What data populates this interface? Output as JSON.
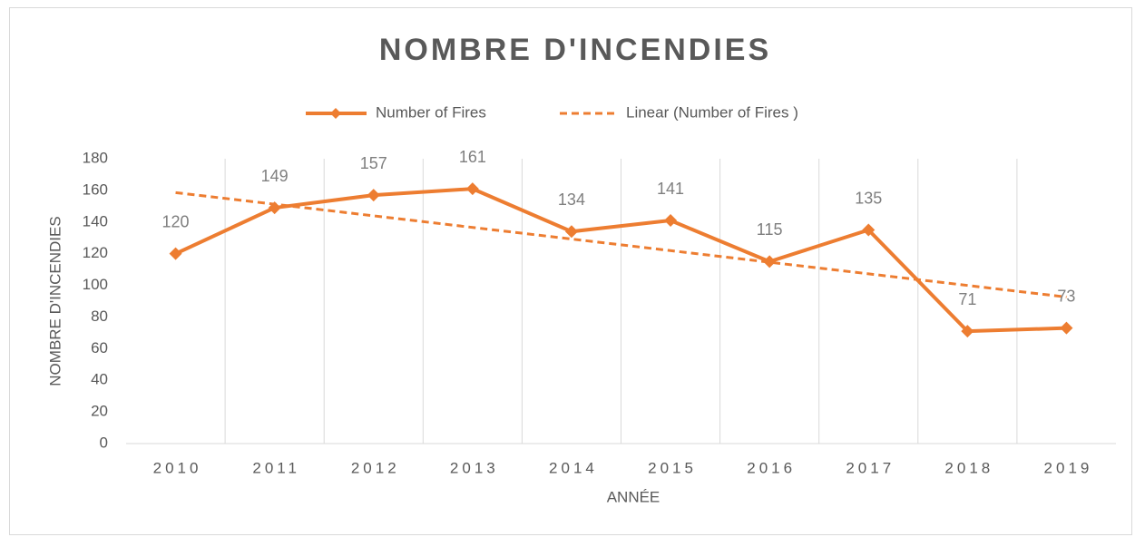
{
  "chart_data": {
    "type": "line",
    "title": "NOMBRE D'INCENDIES",
    "categories": [
      "2010",
      "2011",
      "2012",
      "2013",
      "2014",
      "2015",
      "2016",
      "2017",
      "2018",
      "2019"
    ],
    "series": [
      {
        "name": "Number of Fires",
        "color": "#ed7d31",
        "values": [
          120,
          149,
          157,
          161,
          134,
          141,
          115,
          135,
          71,
          73
        ]
      }
    ],
    "trendline": {
      "name": "Linear (Number of Fires )",
      "kind": "linear"
    },
    "xlabel": "ANNÉE",
    "ylabel": "NOMBRE D'INCENDIES",
    "ylim": [
      0,
      180
    ],
    "yticks": [
      0,
      20,
      40,
      60,
      80,
      100,
      120,
      140,
      160,
      180
    ],
    "grid": "vertical",
    "legend": "top",
    "data_labels": true
  }
}
